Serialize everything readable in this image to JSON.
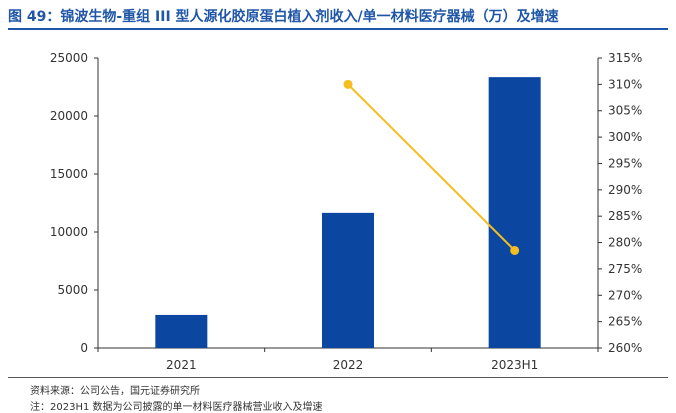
{
  "title": "图 49：锦波生物-重组 III 型人源化胶原蛋白植入剂收入/单一材料医疗器械（万）及增速",
  "source": "资料来源：公司公告，国元证券研究所",
  "note": "注：2023H1 数据为公司披露的单一材料医疗器械营业收入及增速",
  "colors": {
    "title": "#1f56a8",
    "bar": "#0b47a1",
    "line": "#f5bd1f"
  },
  "chart_data": {
    "type": "bar",
    "categories": [
      "2021",
      "2022",
      "2023H1"
    ],
    "series": [
      {
        "type": "bar",
        "axis": "left",
        "values": [
          2850,
          11650,
          23350
        ]
      },
      {
        "type": "line",
        "axis": "right",
        "values": [
          null,
          310,
          278.5
        ]
      }
    ],
    "y_left": {
      "min": 0,
      "max": 25000,
      "ticks": [
        0,
        5000,
        10000,
        15000,
        20000,
        25000
      ]
    },
    "y_right": {
      "min": 260,
      "max": 315,
      "ticks": [
        "260%",
        "265%",
        "270%",
        "275%",
        "280%",
        "285%",
        "290%",
        "295%",
        "300%",
        "305%",
        "310%",
        "315%"
      ]
    },
    "grid": false,
    "legend": "none"
  }
}
